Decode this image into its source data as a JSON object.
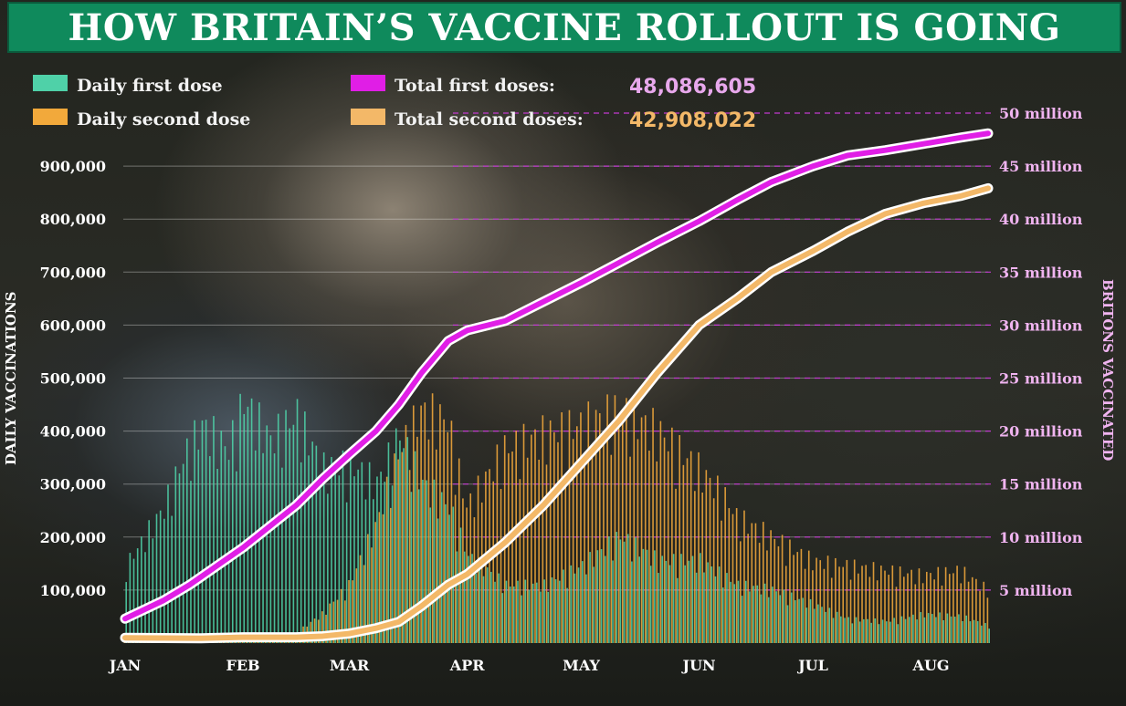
{
  "title": "HOW BRITAIN’S VACCINE ROLLOUT IS GOING",
  "colors": {
    "daily_first": "#4fd1a8",
    "daily_second": "#f2a93b",
    "total_first": "#e01ee6",
    "total_second": "#f3b868",
    "right_axis_text": "#f0b4f0",
    "header_green": "#0f8a5c"
  },
  "legend": [
    {
      "label": "Daily first dose",
      "color": "#4fd1a8"
    },
    {
      "label": "Daily second dose",
      "color": "#f2a93b"
    },
    {
      "label": "Total first doses:",
      "color": "#e01ee6",
      "value": "48,086,605",
      "value_color": "#e8a8ec"
    },
    {
      "label": "Total second doses:",
      "color": "#f3b868",
      "value": "42,908,022",
      "value_color": "#f3b868"
    }
  ],
  "chart_data": {
    "type": "bar",
    "xlabel": "",
    "ylabel": "DAILY VACCINATIONS",
    "y2label": "BRITONS VACCINATED",
    "ylim": [
      0,
      1000000
    ],
    "y2lim": [
      0,
      50000000
    ],
    "y_ticks": [
      "100,000",
      "200,000",
      "300,000",
      "400,000",
      "500,000",
      "600,000",
      "700,000",
      "800,000",
      "900,000"
    ],
    "y2_ticks": [
      "5 million",
      "10 million",
      "15 million",
      "20 million",
      "25 million",
      "30 million",
      "35 million",
      "40 million",
      "45 million",
      "50 million"
    ],
    "x_ticks": [
      "JAN",
      "FEB",
      "MAR",
      "APR",
      "MAY",
      "JUN",
      "JUL",
      "AUG"
    ],
    "x_tick_days": [
      0,
      31,
      59,
      90,
      120,
      151,
      181,
      212
    ],
    "day_range": [
      0,
      227
    ],
    "grid": true,
    "legend_position": "top",
    "series": [
      {
        "name": "Daily first dose",
        "kind": "bar",
        "axis": "left",
        "anchor_days": [
          0,
          10,
          15,
          20,
          27,
          31,
          38,
          45,
          52,
          59,
          66,
          72,
          78,
          85,
          90,
          100,
          110,
          120,
          130,
          140,
          151,
          161,
          170,
          181,
          190,
          200,
          210,
          220,
          227
        ],
        "anchor_values": [
          160000,
          280000,
          380000,
          450000,
          400000,
          500000,
          420000,
          470000,
          360000,
          370000,
          330000,
          430000,
          330000,
          280000,
          180000,
          120000,
          120000,
          160000,
          220000,
          170000,
          170000,
          120000,
          110000,
          80000,
          50000,
          45000,
          60000,
          55000,
          35000
        ]
      },
      {
        "name": "Daily second dose",
        "kind": "bar",
        "axis": "left",
        "anchor_days": [
          0,
          20,
          31,
          45,
          52,
          59,
          66,
          72,
          78,
          85,
          90,
          100,
          110,
          120,
          130,
          140,
          151,
          158,
          161,
          170,
          181,
          190,
          200,
          210,
          220,
          227
        ],
        "anchor_values": [
          15000,
          15000,
          18000,
          20000,
          60000,
          120000,
          240000,
          390000,
          480000,
          460000,
          280000,
          400000,
          430000,
          450000,
          480000,
          440000,
          360000,
          300000,
          260000,
          220000,
          170000,
          160000,
          150000,
          140000,
          150000,
          110000
        ]
      },
      {
        "name": "Total first doses",
        "kind": "line",
        "axis": "right",
        "days": [
          0,
          10,
          17,
          25,
          31,
          38,
          45,
          52,
          59,
          66,
          72,
          78,
          85,
          90,
          100,
          110,
          120,
          130,
          140,
          151,
          161,
          170,
          181,
          190,
          200,
          210,
          220,
          227
        ],
        "values": [
          2300000,
          4000000,
          5500000,
          7500000,
          9000000,
          11000000,
          13000000,
          15500000,
          17800000,
          20000000,
          22500000,
          25500000,
          28500000,
          29500000,
          30400000,
          32200000,
          34000000,
          35900000,
          37800000,
          39800000,
          41800000,
          43500000,
          45000000,
          46000000,
          46500000,
          47100000,
          47700000,
          48086605
        ]
      },
      {
        "name": "Total second doses",
        "kind": "line",
        "axis": "right",
        "days": [
          0,
          20,
          31,
          45,
          52,
          59,
          66,
          72,
          78,
          85,
          90,
          100,
          110,
          120,
          130,
          140,
          151,
          161,
          170,
          181,
          190,
          200,
          210,
          220,
          227
        ],
        "values": [
          500000,
          450000,
          550000,
          550000,
          650000,
          900000,
          1400000,
          2000000,
          3500000,
          5500000,
          6500000,
          9500000,
          13000000,
          17000000,
          21000000,
          25500000,
          30000000,
          32500000,
          35000000,
          37000000,
          38800000,
          40500000,
          41500000,
          42200000,
          42908022
        ]
      }
    ]
  }
}
